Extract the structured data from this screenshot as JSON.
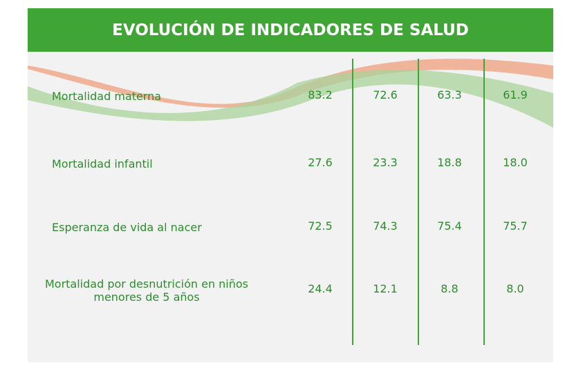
{
  "header": {
    "title": "EVOLUCIÓN DE INDICADORES DE SALUD"
  },
  "table": {
    "rows": [
      {
        "label": "Mortalidad materna",
        "values": [
          "83.2",
          "72.6",
          "63.3",
          "61.9"
        ]
      },
      {
        "label": "Mortalidad infantil",
        "values": [
          "27.6",
          "23.3",
          "18.8",
          "18.0"
        ]
      },
      {
        "label": "Esperanza de vida al nacer",
        "values": [
          "72.5",
          "74.3",
          "75.4",
          "75.7"
        ]
      },
      {
        "label": "Mortalidad por desnutrición en niños menores de 5 años",
        "values": [
          "24.4",
          "12.1",
          "8.8",
          "8.0"
        ]
      }
    ]
  }
}
